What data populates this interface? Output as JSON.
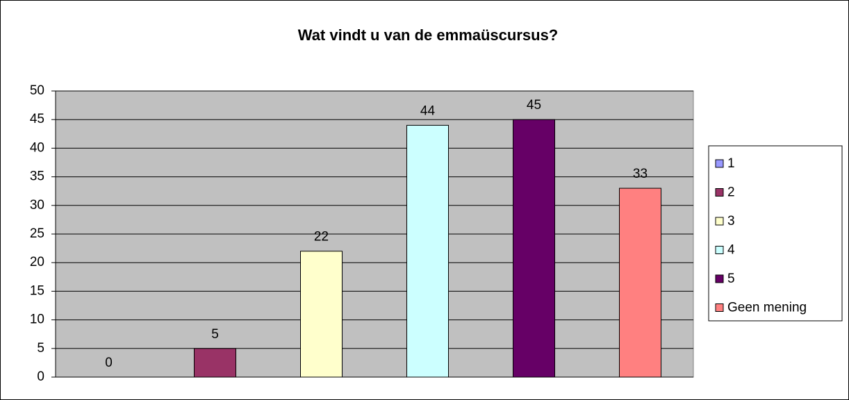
{
  "chart_data": {
    "type": "bar",
    "title": "Wat vindt u van de emmaüscursus?",
    "series": [
      {
        "name": "1",
        "color": "#9999ff",
        "values": [
          0
        ]
      },
      {
        "name": "2",
        "color": "#993366",
        "values": [
          5
        ]
      },
      {
        "name": "3",
        "color": "#ffffcc",
        "values": [
          22
        ]
      },
      {
        "name": "4",
        "color": "#ccffff",
        "values": [
          44
        ]
      },
      {
        "name": "5",
        "color": "#660066",
        "values": [
          45
        ]
      },
      {
        "name": "Geen mening",
        "color": "#ff8080",
        "values": [
          33
        ]
      }
    ],
    "ylim": [
      0,
      50
    ],
    "yticks": [
      0,
      5,
      10,
      15,
      20,
      25,
      30,
      35,
      40,
      45,
      50
    ],
    "grid": true,
    "legend": "right"
  }
}
